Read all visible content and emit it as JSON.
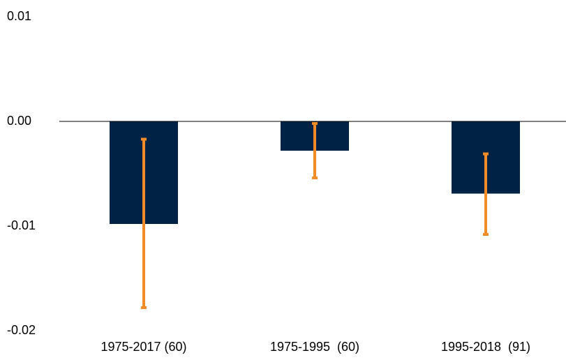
{
  "chart_data": {
    "type": "bar",
    "title": "",
    "xlabel": "",
    "ylabel": "",
    "categories": [
      "1975-2017 (60)",
      "1975-1995  (60)",
      "1995-2018  (91)"
    ],
    "values": [
      -0.0098,
      -0.0028,
      -0.0069
    ],
    "error_bars": [
      {
        "low": -0.0178,
        "high": -0.0017
      },
      {
        "low": -0.0054,
        "high": -0.0002
      },
      {
        "low": -0.0108,
        "high": -0.0031
      }
    ],
    "yticks": [
      0.01,
      0.0,
      -0.01,
      -0.02
    ],
    "ytick_labels": [
      "0.01",
      "0.00",
      "-0.01",
      "-0.02"
    ],
    "ylim": [
      -0.02,
      0.01
    ],
    "grid": false,
    "legend": "none",
    "colors": {
      "bar": "#002244",
      "error_bar": "#F28C28",
      "axis": "#000000"
    }
  }
}
